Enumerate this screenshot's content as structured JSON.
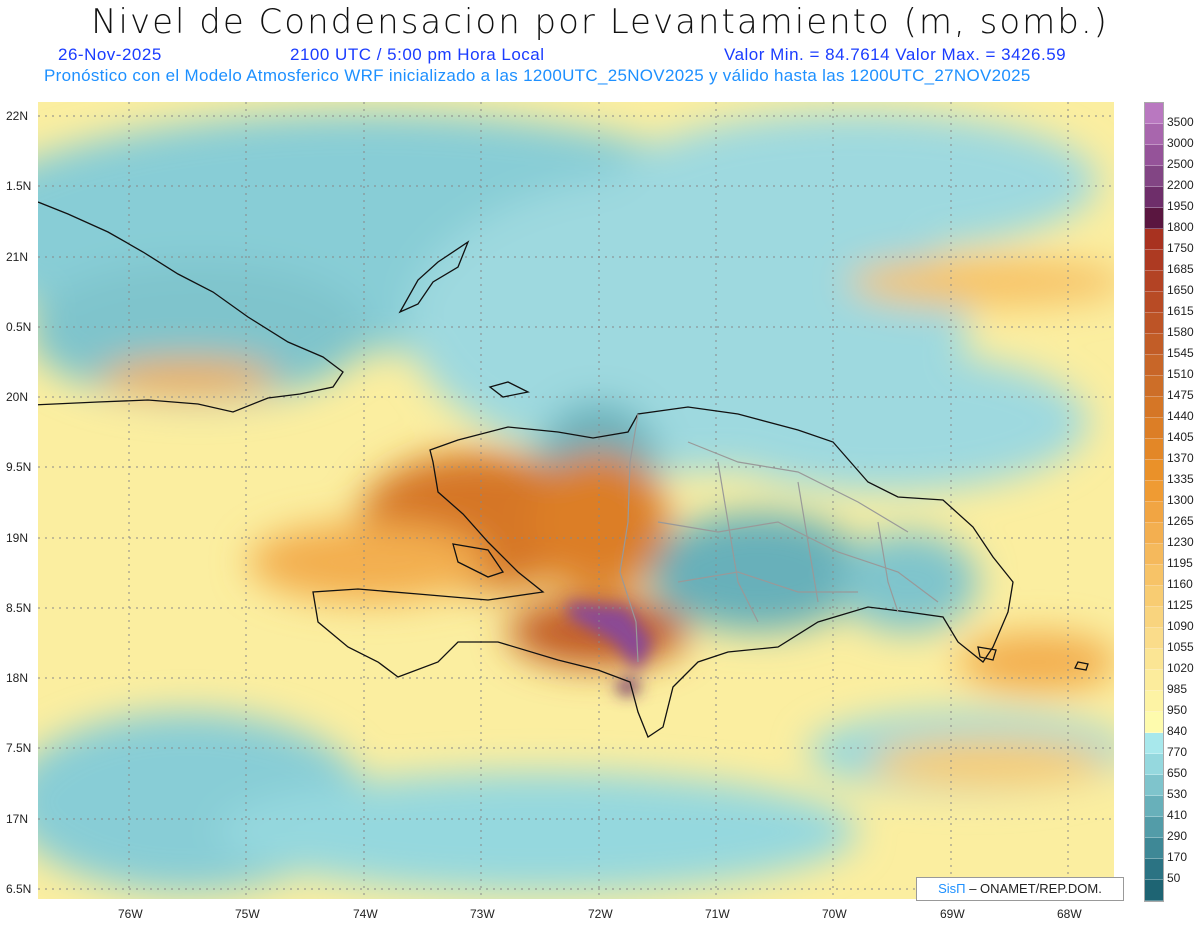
{
  "header": {
    "title": "Nivel de Condensacion por Levantamiento (m, somb.)",
    "date": "26-Nov-2025",
    "time": "2100 UTC / 5:00 pm Hora Local",
    "minmax": "Valor Min. = 84.7614  Valor Max. = 3426.59",
    "subtitle": "Pronóstico con el Modelo Atmosferico WRF inicializado a las 1200UTC_25NOV2025 y válido hasta las  1200UTC_27NOV2025"
  },
  "axes": {
    "lat_labels": [
      "22N",
      "1.5N",
      "21N",
      "0.5N",
      "20N",
      "9.5N",
      "19N",
      "8.5N",
      "18N",
      "7.5N",
      "17N",
      "6.5N"
    ],
    "lat_values": [
      22,
      21.5,
      21,
      20.5,
      20,
      19.5,
      19,
      18.5,
      18,
      17.5,
      17,
      16.5
    ],
    "lon_labels": [
      "76W",
      "75W",
      "74W",
      "73W",
      "72W",
      "71W",
      "70W",
      "69W",
      "68W"
    ],
    "lon_values": [
      -76,
      -75,
      -74,
      -73,
      -72,
      -71,
      -70,
      -69,
      -68
    ]
  },
  "colorbar": {
    "labels": [
      "3500",
      "3000",
      "2500",
      "2200",
      "1950",
      "1800",
      "1750",
      "1685",
      "1650",
      "1615",
      "1580",
      "1545",
      "1510",
      "1475",
      "1440",
      "1405",
      "1370",
      "1335",
      "1300",
      "1265",
      "1230",
      "1195",
      "1160",
      "1125",
      "1090",
      "1055",
      "1020",
      "985",
      "950",
      "840",
      "770",
      "650",
      "530",
      "410",
      "290",
      "170",
      "50"
    ],
    "colors": [
      "#b978c0",
      "#a866ad",
      "#955399",
      "#824584",
      "#6e2e6a",
      "#5a1640",
      "#a83220",
      "#ad3a22",
      "#b34324",
      "#b84b25",
      "#bd5426",
      "#c25d27",
      "#c86628",
      "#cd6e28",
      "#d57626",
      "#dc7e26",
      "#e38727",
      "#ea9129",
      "#ef9b33",
      "#f1a543",
      "#f3af50",
      "#f5b95c",
      "#f7c367",
      "#f8cc72",
      "#f9d47e",
      "#fadc8a",
      "#fbe594",
      "#fcec9c",
      "#fdf3a4",
      "#fefbad",
      "#a8e8ec",
      "#95d8de",
      "#7fc4cc",
      "#68b0ba",
      "#539ca8",
      "#3e8896",
      "#2b7383",
      "#1e6473"
    ]
  },
  "credit": {
    "logo": "SisΠ",
    "text": " – ONAMET/REP.DOM."
  },
  "colors": {
    "ocean_teal": "#88cdd6",
    "yellow": "#fbeea0",
    "orange": "#e08a35",
    "brown": "#b9602a",
    "purple": "#8a4a95"
  }
}
